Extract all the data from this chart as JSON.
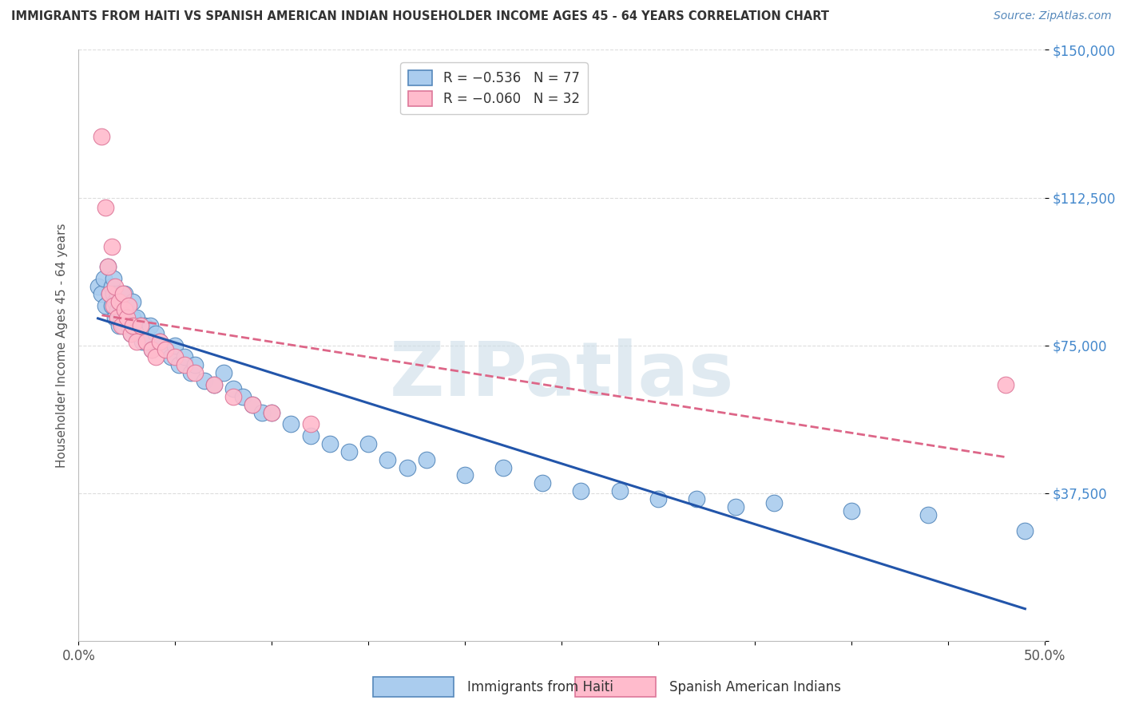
{
  "title": "IMMIGRANTS FROM HAITI VS SPANISH AMERICAN INDIAN HOUSEHOLDER INCOME AGES 45 - 64 YEARS CORRELATION CHART",
  "source": "Source: ZipAtlas.com",
  "ylabel": "Householder Income Ages 45 - 64 years",
  "xlim": [
    0.0,
    0.5
  ],
  "ylim": [
    0,
    150000
  ],
  "yticks": [
    0,
    37500,
    75000,
    112500,
    150000
  ],
  "ytick_labels": [
    "",
    "$37,500",
    "$75,000",
    "$112,500",
    "$150,000"
  ],
  "xticks": [
    0.0,
    0.05,
    0.1,
    0.15,
    0.2,
    0.25,
    0.3,
    0.35,
    0.4,
    0.45,
    0.5
  ],
  "xtick_labels": [
    "0.0%",
    "",
    "",
    "",
    "",
    "",
    "",
    "",
    "",
    "",
    "50.0%"
  ],
  "haiti_color": "#aaccee",
  "haiti_edge": "#5588bb",
  "spanish_color": "#ffbbcc",
  "spanish_edge": "#dd7799",
  "trend_haiti_color": "#2255aa",
  "trend_spanish_color": "#dd6688",
  "watermark": "ZIPatlas",
  "watermark_color": "#ccdde8",
  "background_color": "#ffffff",
  "grid_color": "#dddddd",
  "title_color": "#333333",
  "source_color": "#5588bb",
  "axis_label_color": "#555555",
  "tick_label_color_y": "#4488cc",
  "legend_label1": "R = −0.536   N = 77",
  "legend_label2": "R = −0.060   N = 32",
  "series1_name": "Immigrants from Haiti",
  "series2_name": "Spanish American Indians",
  "haiti_scatter_x": [
    0.01,
    0.012,
    0.013,
    0.014,
    0.015,
    0.016,
    0.017,
    0.017,
    0.018,
    0.018,
    0.019,
    0.019,
    0.02,
    0.02,
    0.021,
    0.021,
    0.022,
    0.022,
    0.022,
    0.023,
    0.023,
    0.024,
    0.024,
    0.025,
    0.025,
    0.026,
    0.026,
    0.027,
    0.028,
    0.028,
    0.029,
    0.03,
    0.031,
    0.032,
    0.033,
    0.034,
    0.035,
    0.036,
    0.037,
    0.038,
    0.04,
    0.042,
    0.045,
    0.048,
    0.05,
    0.052,
    0.055,
    0.058,
    0.06,
    0.065,
    0.07,
    0.075,
    0.08,
    0.085,
    0.09,
    0.095,
    0.1,
    0.11,
    0.12,
    0.13,
    0.14,
    0.15,
    0.16,
    0.17,
    0.18,
    0.2,
    0.22,
    0.24,
    0.26,
    0.28,
    0.3,
    0.32,
    0.34,
    0.36,
    0.4,
    0.44,
    0.49
  ],
  "haiti_scatter_y": [
    90000,
    88000,
    92000,
    85000,
    95000,
    88000,
    85000,
    90000,
    92000,
    88000,
    86000,
    82000,
    88000,
    84000,
    80000,
    86000,
    84000,
    88000,
    82000,
    86000,
    80000,
    84000,
    88000,
    82000,
    85000,
    80000,
    83000,
    78000,
    82000,
    86000,
    80000,
    82000,
    78000,
    80000,
    76000,
    80000,
    78000,
    76000,
    80000,
    74000,
    78000,
    76000,
    74000,
    72000,
    75000,
    70000,
    72000,
    68000,
    70000,
    66000,
    65000,
    68000,
    64000,
    62000,
    60000,
    58000,
    58000,
    55000,
    52000,
    50000,
    48000,
    50000,
    46000,
    44000,
    46000,
    42000,
    44000,
    40000,
    38000,
    38000,
    36000,
    36000,
    34000,
    35000,
    33000,
    32000,
    28000
  ],
  "spanish_scatter_x": [
    0.012,
    0.014,
    0.015,
    0.016,
    0.017,
    0.018,
    0.019,
    0.02,
    0.021,
    0.022,
    0.023,
    0.024,
    0.025,
    0.026,
    0.027,
    0.028,
    0.03,
    0.032,
    0.035,
    0.038,
    0.04,
    0.042,
    0.045,
    0.05,
    0.055,
    0.06,
    0.07,
    0.08,
    0.09,
    0.1,
    0.12,
    0.48
  ],
  "spanish_scatter_y": [
    128000,
    110000,
    95000,
    88000,
    100000,
    85000,
    90000,
    82000,
    86000,
    80000,
    88000,
    84000,
    82000,
    85000,
    78000,
    80000,
    76000,
    80000,
    76000,
    74000,
    72000,
    76000,
    74000,
    72000,
    70000,
    68000,
    65000,
    62000,
    60000,
    58000,
    55000,
    65000
  ]
}
